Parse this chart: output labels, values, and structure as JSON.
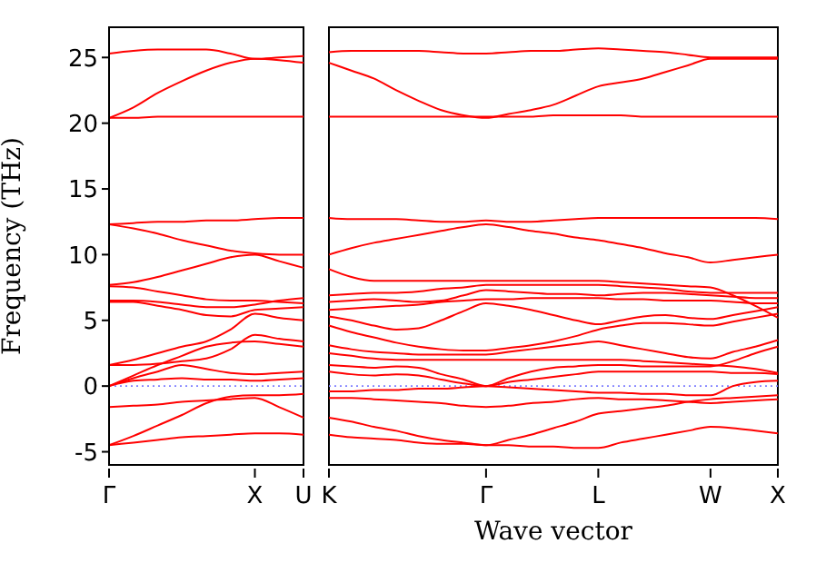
{
  "chart_data": [
    {
      "type": "line",
      "ylabel": "Frequency (THz)",
      "categories": [
        "Γ",
        null,
        null,
        null,
        null,
        null,
        "X",
        null,
        "U"
      ],
      "ylim": [
        -6,
        27.3
      ],
      "yticks": [
        -5,
        0,
        5,
        10,
        15,
        20,
        25
      ],
      "ref_lines": [
        {
          "axis": "y",
          "value": 0,
          "color": "#7f7fff",
          "line_style": "dotted"
        }
      ],
      "series": [
        {
          "color": "#ff0000",
          "values": [
            -4.5,
            -4.3,
            -4.1,
            -3.9,
            -3.8,
            -3.7,
            -3.6,
            -3.6,
            -3.7
          ]
        },
        {
          "color": "#ff0000",
          "values": [
            -4.5,
            -3.8,
            -3.0,
            -2.2,
            -1.3,
            -0.8,
            -0.7,
            -0.7,
            -0.6
          ]
        },
        {
          "color": "#ff0000",
          "values": [
            -1.6,
            -1.5,
            -1.4,
            -1.2,
            -1.1,
            -1.0,
            -0.9,
            -1.6,
            -2.4
          ]
        },
        {
          "color": "#ff0000",
          "values": [
            0,
            0.4,
            0.5,
            0.6,
            0.5,
            0.5,
            0.4,
            0.5,
            0.6
          ]
        },
        {
          "color": "#ff0000",
          "values": [
            0,
            0.6,
            1.1,
            1.6,
            1.3,
            1.0,
            0.9,
            1.0,
            1.1
          ]
        },
        {
          "color": "#ff0000",
          "values": [
            0,
            0.8,
            1.6,
            2.3,
            3.0,
            3.3,
            3.4,
            3.2,
            3.0
          ]
        },
        {
          "color": "#ff0000",
          "values": [
            1.6,
            1.6,
            1.7,
            1.9,
            2.1,
            2.8,
            3.9,
            3.6,
            3.4
          ]
        },
        {
          "color": "#ff0000",
          "values": [
            1.6,
            2.0,
            2.5,
            3.0,
            3.4,
            4.3,
            5.5,
            5.2,
            5.0
          ]
        },
        {
          "color": "#ff0000",
          "values": [
            6.4,
            6.4,
            6.1,
            5.8,
            5.4,
            5.3,
            5.8,
            5.9,
            6.0
          ]
        },
        {
          "color": "#ff0000",
          "values": [
            6.5,
            6.5,
            6.4,
            6.2,
            6.0,
            6.0,
            6.2,
            6.5,
            6.7
          ]
        },
        {
          "color": "#ff0000",
          "values": [
            7.6,
            7.5,
            7.2,
            6.9,
            6.6,
            6.5,
            6.5,
            6.4,
            6.3
          ]
        },
        {
          "color": "#ff0000",
          "values": [
            7.7,
            7.9,
            8.3,
            8.8,
            9.3,
            9.8,
            10.0,
            9.5,
            9.0
          ]
        },
        {
          "color": "#ff0000",
          "values": [
            12.3,
            12.0,
            11.6,
            11.1,
            10.7,
            10.3,
            10.1,
            10.0,
            10.0
          ]
        },
        {
          "color": "#ff0000",
          "values": [
            12.3,
            12.4,
            12.5,
            12.5,
            12.6,
            12.6,
            12.7,
            12.8,
            12.8
          ]
        },
        {
          "color": "#ff0000",
          "values": [
            20.4,
            20.4,
            20.5,
            20.5,
            20.5,
            20.5,
            20.5,
            20.5,
            20.5
          ]
        },
        {
          "color": "#ff0000",
          "values": [
            20.4,
            21.2,
            22.3,
            23.2,
            24.0,
            24.6,
            24.9,
            24.8,
            24.6
          ]
        },
        {
          "color": "#ff0000",
          "values": [
            25.3,
            25.5,
            25.6,
            25.6,
            25.6,
            25.3,
            24.9,
            25.0,
            25.1
          ]
        }
      ]
    },
    {
      "type": "line",
      "xlabel": "Wave vector",
      "tick_labels": "x",
      "categories": [
        "K",
        null,
        null,
        null,
        null,
        null,
        null,
        "Γ",
        null,
        null,
        null,
        null,
        "L",
        null,
        null,
        null,
        null,
        "W",
        null,
        null,
        "X"
      ],
      "ylim": [
        -6,
        27.3
      ],
      "yticks": [
        -5,
        0,
        5,
        10,
        15,
        20,
        25
      ],
      "ref_lines": [
        {
          "axis": "y",
          "value": 0,
          "color": "#7f7fff",
          "line_style": "dotted"
        }
      ],
      "series": [
        {
          "color": "#ff0000",
          "values": [
            -3.7,
            -3.9,
            -4.0,
            -4.1,
            -4.3,
            -4.4,
            -4.4,
            -4.5,
            -4.5,
            -4.6,
            -4.6,
            -4.7,
            -4.7,
            -4.3,
            -4.0,
            -3.7,
            -3.4,
            -3.1,
            -3.2,
            -3.4,
            -3.6
          ]
        },
        {
          "color": "#ff0000",
          "values": [
            -2.4,
            -2.7,
            -3.1,
            -3.4,
            -3.8,
            -4.1,
            -4.3,
            -4.5,
            -4.1,
            -3.7,
            -3.2,
            -2.7,
            -2.1,
            -1.9,
            -1.7,
            -1.5,
            -1.2,
            -1.0,
            -0.9,
            -0.8,
            -0.7
          ]
        },
        {
          "color": "#ff0000",
          "values": [
            -0.9,
            -0.9,
            -1.0,
            -1.1,
            -1.2,
            -1.3,
            -1.5,
            -1.6,
            -1.5,
            -1.3,
            -1.2,
            -1.0,
            -0.9,
            -1.0,
            -1.0,
            -1.1,
            -1.2,
            -1.3,
            -1.2,
            -1.1,
            -1.0
          ]
        },
        {
          "color": "#ff0000",
          "values": [
            -0.4,
            -0.4,
            -0.3,
            -0.3,
            -0.2,
            -0.2,
            -0.1,
            0,
            -0.1,
            -0.2,
            -0.3,
            -0.4,
            -0.5,
            -0.5,
            -0.6,
            -0.6,
            -0.7,
            -0.7,
            0,
            0.3,
            0.4
          ]
        },
        {
          "color": "#ff0000",
          "values": [
            1.1,
            0.9,
            0.8,
            0.9,
            0.8,
            0.5,
            0.2,
            0,
            0.3,
            0.5,
            0.7,
            0.9,
            1.1,
            1.1,
            1.1,
            1.1,
            1.1,
            1.1,
            1.0,
            1.0,
            0.9
          ]
        },
        {
          "color": "#ff0000",
          "values": [
            1.6,
            1.5,
            1.4,
            1.5,
            1.4,
            0.9,
            0.5,
            0,
            0.6,
            1.1,
            1.4,
            1.5,
            1.6,
            1.6,
            1.5,
            1.5,
            1.5,
            1.5,
            1.9,
            2.5,
            3.0
          ]
        },
        {
          "color": "#ff0000",
          "values": [
            2.5,
            2.3,
            2.1,
            2.0,
            2.0,
            2.0,
            2.0,
            2.0,
            2.0,
            2.0,
            2.0,
            2.0,
            2.0,
            2.0,
            1.9,
            1.8,
            1.7,
            1.6,
            1.5,
            1.3,
            1.0
          ]
        },
        {
          "color": "#ff0000",
          "values": [
            3.1,
            2.8,
            2.6,
            2.5,
            2.4,
            2.4,
            2.4,
            2.4,
            2.6,
            2.8,
            3.0,
            3.2,
            3.4,
            3.1,
            2.8,
            2.5,
            2.2,
            2.1,
            2.6,
            3.0,
            3.5
          ]
        },
        {
          "color": "#ff0000",
          "values": [
            4.6,
            4.1,
            3.7,
            3.3,
            3.0,
            2.8,
            2.7,
            2.7,
            2.9,
            3.1,
            3.4,
            3.8,
            4.3,
            4.6,
            4.8,
            4.8,
            4.7,
            4.6,
            4.9,
            5.2,
            5.5
          ]
        },
        {
          "color": "#ff0000",
          "values": [
            5.3,
            5.0,
            4.6,
            4.3,
            4.4,
            5.0,
            5.7,
            6.3,
            6.1,
            5.8,
            5.4,
            5.0,
            4.7,
            5.0,
            5.3,
            5.4,
            5.2,
            5.1,
            5.4,
            5.7,
            6.0
          ]
        },
        {
          "color": "#ff0000",
          "values": [
            5.8,
            5.9,
            6.0,
            6.1,
            6.2,
            6.4,
            6.5,
            6.6,
            6.6,
            6.7,
            6.7,
            6.7,
            6.7,
            6.6,
            6.6,
            6.5,
            6.5,
            6.5,
            6.4,
            6.3,
            6.3
          ]
        },
        {
          "color": "#ff0000",
          "values": [
            6.4,
            6.5,
            6.6,
            6.5,
            6.4,
            6.5,
            6.9,
            7.3,
            7.2,
            7.1,
            7.0,
            7.0,
            6.9,
            7.0,
            7.1,
            7.1,
            7.0,
            6.9,
            6.8,
            6.7,
            6.7
          ]
        },
        {
          "color": "#ff0000",
          "values": [
            6.9,
            7.0,
            7.1,
            7.1,
            7.2,
            7.4,
            7.5,
            7.7,
            7.7,
            7.7,
            7.7,
            7.7,
            7.7,
            7.6,
            7.5,
            7.4,
            7.2,
            7.1,
            7.1,
            7.1,
            7.1
          ]
        },
        {
          "color": "#ff0000",
          "values": [
            8.9,
            8.3,
            8.0,
            8.0,
            8.0,
            8.0,
            8.0,
            8.0,
            8.0,
            8.0,
            8.0,
            8.0,
            8.0,
            7.9,
            7.8,
            7.7,
            7.6,
            7.5,
            6.9,
            6.1,
            5.2
          ]
        },
        {
          "color": "#ff0000",
          "values": [
            10.0,
            10.5,
            10.9,
            11.2,
            11.5,
            11.8,
            12.1,
            12.3,
            12.1,
            11.8,
            11.6,
            11.3,
            11.1,
            10.8,
            10.5,
            10.1,
            9.8,
            9.4,
            9.6,
            9.8,
            10.0
          ]
        },
        {
          "color": "#ff0000",
          "values": [
            12.8,
            12.7,
            12.7,
            12.7,
            12.6,
            12.5,
            12.5,
            12.6,
            12.5,
            12.5,
            12.6,
            12.7,
            12.8,
            12.8,
            12.8,
            12.8,
            12.8,
            12.8,
            12.8,
            12.8,
            12.7
          ]
        },
        {
          "color": "#ff0000",
          "values": [
            20.5,
            20.5,
            20.5,
            20.5,
            20.5,
            20.5,
            20.5,
            20.5,
            20.5,
            20.5,
            20.6,
            20.6,
            20.6,
            20.6,
            20.5,
            20.5,
            20.5,
            20.5,
            20.5,
            20.5,
            20.5
          ]
        },
        {
          "color": "#ff0000",
          "values": [
            24.6,
            24.0,
            23.4,
            22.5,
            21.7,
            21.0,
            20.6,
            20.4,
            20.7,
            21.0,
            21.4,
            22.1,
            22.8,
            23.1,
            23.4,
            23.9,
            24.4,
            24.9,
            24.9,
            24.9,
            24.9
          ]
        },
        {
          "color": "#ff0000",
          "values": [
            25.4,
            25.5,
            25.5,
            25.5,
            25.5,
            25.4,
            25.3,
            25.3,
            25.4,
            25.5,
            25.5,
            25.6,
            25.7,
            25.6,
            25.5,
            25.4,
            25.2,
            25.0,
            25.0,
            25.0,
            25.0
          ]
        }
      ]
    }
  ]
}
